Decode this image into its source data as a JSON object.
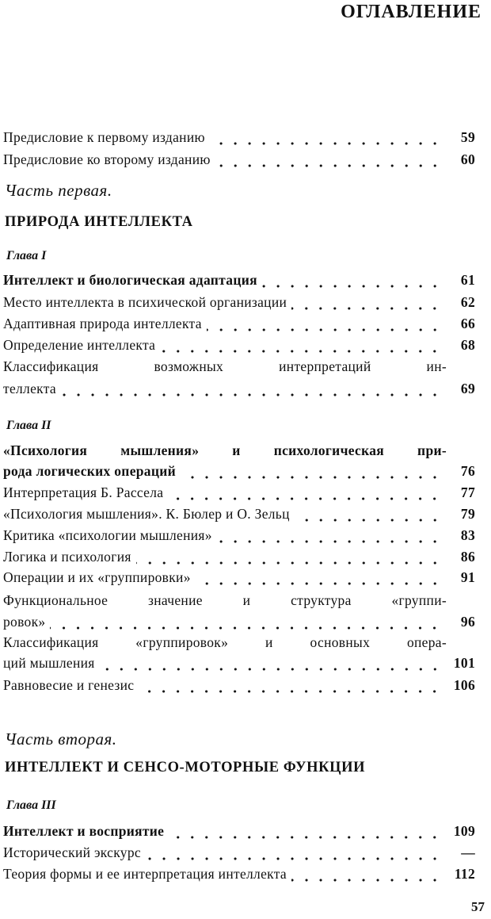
{
  "title": "ОГЛАВЛЕНИЕ",
  "front": [
    {
      "lines": [
        "Предисловие к первому изданию"
      ],
      "page": "59"
    },
    {
      "lines": [
        "Предисловие ко второму изданию"
      ],
      "page": "60"
    }
  ],
  "part1": {
    "label": "Часть первая.",
    "title": "ПРИРОДА ИНТЕЛЛЕКТА",
    "chapters": [
      {
        "label": "Глава I",
        "entries": [
          {
            "lines": [
              "Интеллект и биологическая адаптация"
            ],
            "page": "61",
            "bold": true
          },
          {
            "lines": [
              "Место интеллекта в психической организации"
            ],
            "page": "62"
          },
          {
            "lines": [
              "Адаптивная природа интеллекта"
            ],
            "page": "66"
          },
          {
            "lines": [
              "Определение интеллекта"
            ],
            "page": "68"
          },
          {
            "lines": [
              "Классификация возможных интерпретаций ин-",
              "теллекта"
            ],
            "page": "69"
          }
        ]
      },
      {
        "label": "Глава II",
        "entries": [
          {
            "lines": [
              "«Психология мышления» и психологическая при-",
              "рода логических операций"
            ],
            "page": "76",
            "bold": true
          },
          {
            "lines": [
              "Интерпретация Б. Рассела"
            ],
            "page": "77"
          },
          {
            "lines": [
              "«Психология мышления». К. Бюлер и О. Зельц"
            ],
            "page": "79"
          },
          {
            "lines": [
              "Критика «психологии мышления»"
            ],
            "page": "83"
          },
          {
            "lines": [
              "Логика и психология"
            ],
            "page": "86"
          },
          {
            "lines": [
              "Операции и их «группировки»"
            ],
            "page": "91"
          },
          {
            "lines": [
              "Функциональное значение и структура «группи-",
              "ровок»"
            ],
            "page": "96"
          },
          {
            "lines": [
              "Классификация «группировок» и основных опера-",
              "ций мышления"
            ],
            "page": "101"
          },
          {
            "lines": [
              "Равновесие и генезис"
            ],
            "page": "106"
          }
        ]
      }
    ]
  },
  "part2": {
    "label": "Часть вторая.",
    "title": "ИНТЕЛЛЕКТ И СЕНСО-МОТОРНЫЕ ФУНКЦИИ",
    "chapters": [
      {
        "label": "Глава III",
        "entries": [
          {
            "lines": [
              "Интеллект и восприятие"
            ],
            "page": "109",
            "bold": true
          },
          {
            "lines": [
              "Исторический экскурс"
            ],
            "page": "—"
          },
          {
            "lines": [
              "Теория формы и ее интерпретация интеллекта"
            ],
            "page": "112"
          }
        ]
      }
    ]
  },
  "folio": "57"
}
